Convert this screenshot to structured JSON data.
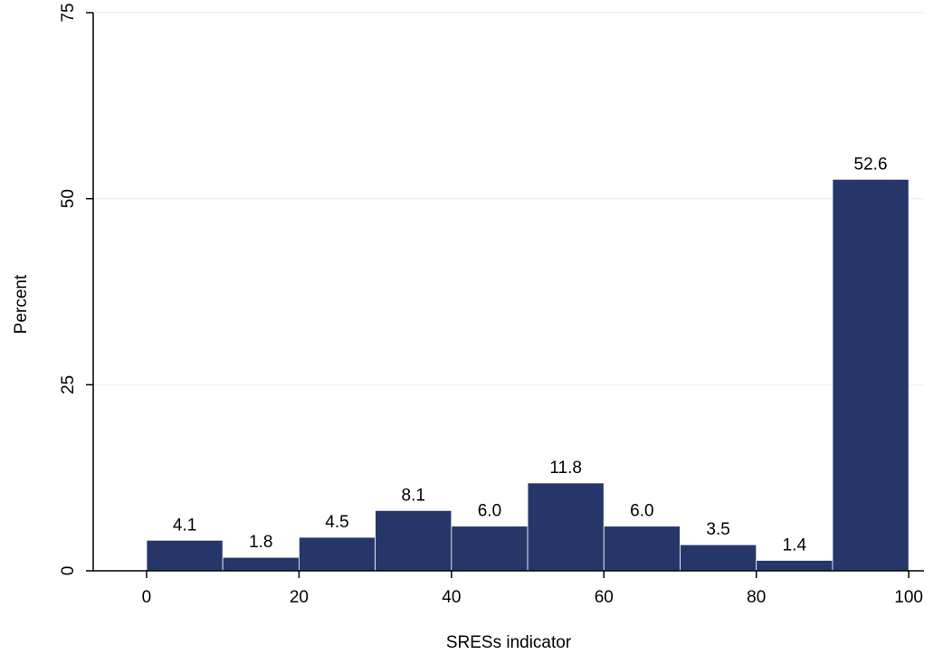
{
  "chart_data": {
    "type": "bar",
    "histogram": true,
    "bins": [
      {
        "start": 0,
        "end": 10,
        "value": 4.1,
        "label": "4.1"
      },
      {
        "start": 10,
        "end": 20,
        "value": 1.8,
        "label": "1.8"
      },
      {
        "start": 20,
        "end": 30,
        "value": 4.5,
        "label": "4.5"
      },
      {
        "start": 30,
        "end": 40,
        "value": 8.1,
        "label": "8.1"
      },
      {
        "start": 40,
        "end": 50,
        "value": 6.0,
        "label": "6.0"
      },
      {
        "start": 50,
        "end": 60,
        "value": 11.8,
        "label": "11.8"
      },
      {
        "start": 60,
        "end": 70,
        "value": 6.0,
        "label": "6.0"
      },
      {
        "start": 70,
        "end": 80,
        "value": 3.5,
        "label": "3.5"
      },
      {
        "start": 80,
        "end": 90,
        "value": 1.4,
        "label": "1.4"
      },
      {
        "start": 90,
        "end": 100,
        "value": 52.6,
        "label": "52.6"
      }
    ],
    "title": "",
    "xlabel": "SRESs indicator",
    "ylabel": "Percent",
    "xlim": [
      -7,
      102
    ],
    "ylim": [
      0,
      75
    ],
    "xticks": [
      {
        "value": 0,
        "label": "0"
      },
      {
        "value": 20,
        "label": "20"
      },
      {
        "value": 40,
        "label": "40"
      },
      {
        "value": 60,
        "label": "60"
      },
      {
        "value": 80,
        "label": "80"
      },
      {
        "value": 100,
        "label": "100"
      }
    ],
    "yticks": [
      {
        "value": 0,
        "label": "0"
      },
      {
        "value": 25,
        "label": "25"
      },
      {
        "value": 50,
        "label": "50"
      },
      {
        "value": 75,
        "label": "75"
      }
    ],
    "grid": "horizontal",
    "colors": {
      "bar_fill": "#263669",
      "bar_edge": "#ffffff",
      "axis": "#000000",
      "grid": "#eef2f6"
    }
  }
}
